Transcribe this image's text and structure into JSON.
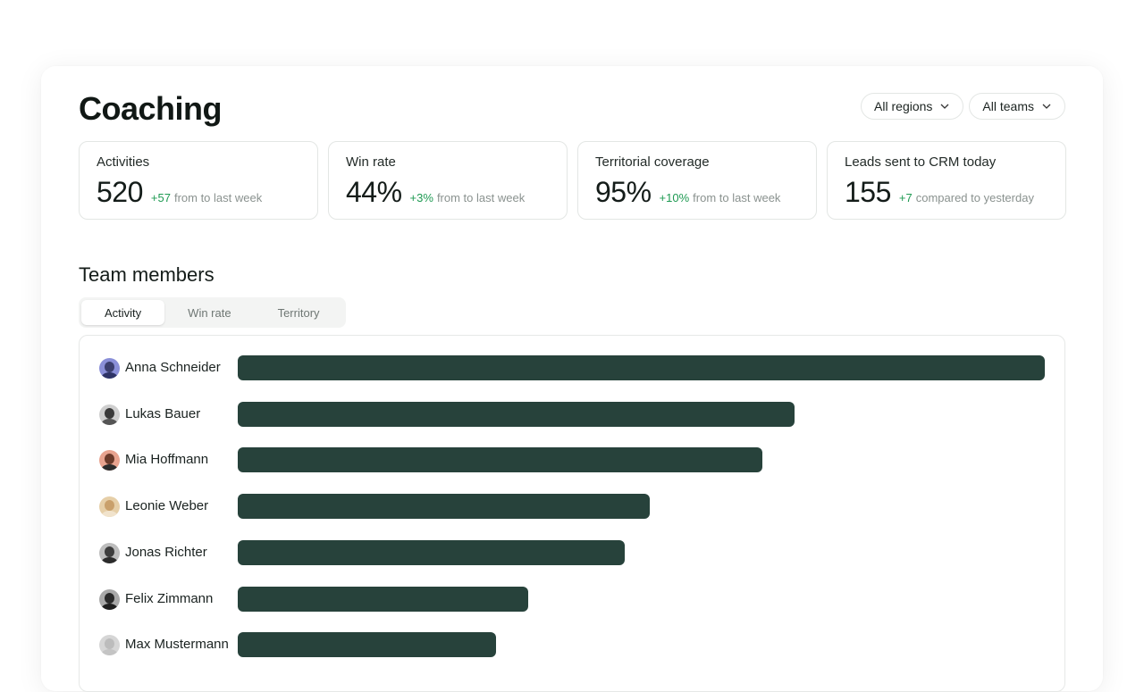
{
  "header": {
    "title": "Coaching",
    "filters": {
      "region": "All regions",
      "team": "All teams"
    }
  },
  "stats": [
    {
      "label": "Activities",
      "value": "520",
      "delta": "+57",
      "note": "from to last week"
    },
    {
      "label": "Win rate",
      "value": "44%",
      "delta": "+3%",
      "note": "from to last week"
    },
    {
      "label": "Territorial coverage",
      "value": "95%",
      "delta": "+10%",
      "note": "from to last week"
    },
    {
      "label": "Leads sent to CRM today",
      "value": "155",
      "delta": "+7",
      "note": "compared to yesterday"
    }
  ],
  "team": {
    "title": "Team members",
    "tabs": [
      "Activity",
      "Win rate",
      "Territory"
    ],
    "active_tab": "Activity"
  },
  "chart_data": {
    "type": "bar",
    "orientation": "horizontal",
    "categories": [
      "Anna Schneider",
      "Lukas Bauer",
      "Mia Hoffmann",
      "Leonie Weber",
      "Jonas Richter",
      "Felix Zimmann",
      "Max Mustermann"
    ],
    "values": [
      100,
      69,
      65,
      51,
      48,
      36,
      32
    ],
    "xlim": [
      0,
      100
    ],
    "bar_color": "#27423b"
  },
  "colors": {
    "accent": "#27423b",
    "delta_positive": "#1e9a52"
  },
  "avatars": [
    {
      "bg": "#8a8fd8",
      "head": "#3b3e6e",
      "body": "#2e3366"
    },
    {
      "bg": "#cfcfcf",
      "head": "#3a3a3a",
      "body": "#555555"
    },
    {
      "bg": "#e8a38f",
      "head": "#6b3a2a",
      "body": "#2c2c2c"
    },
    {
      "bg": "#e6cfa8",
      "head": "#c9a06b",
      "body": "#f1e3cc"
    },
    {
      "bg": "#bdbdbd",
      "head": "#3d3d3d",
      "body": "#2b2b2b"
    },
    {
      "bg": "#a9a9a9",
      "head": "#2a2a2a",
      "body": "#1f1f1f"
    },
    {
      "bg": "#d6d6d6",
      "head": "#bcbcbc",
      "body": "#c4c4c4"
    }
  ]
}
